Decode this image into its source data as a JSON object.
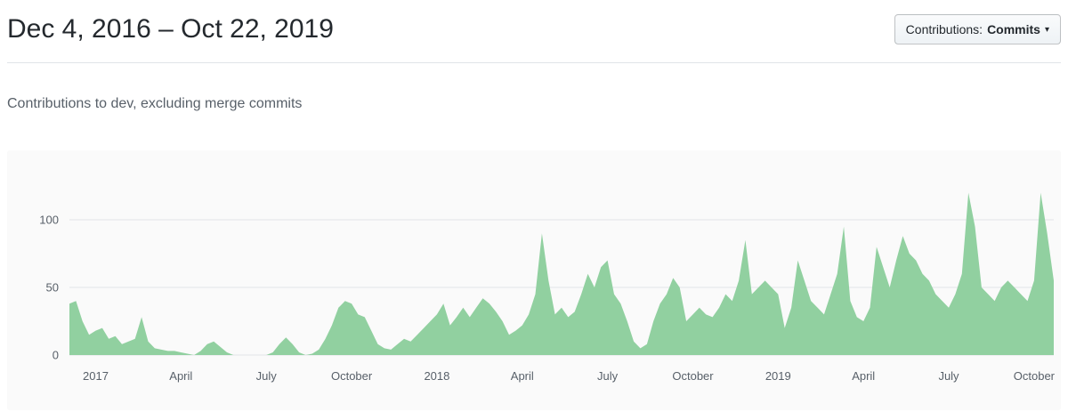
{
  "header": {
    "title": "Dec 4, 2016 – Oct 22, 2019",
    "contributions_button": {
      "label_prefix": "Contributions:",
      "selected": "Commits",
      "caret_icon": "▾"
    }
  },
  "subtitle": "Contributions to dev, excluding merge commits",
  "chart_data": {
    "type": "area",
    "title": "Contributions to dev, excluding merge commits",
    "series_name": "Commits",
    "x_start_label": "Dec 4, 2016",
    "x_end_label": "Oct 22, 2019",
    "x_tick_labels": [
      "2017",
      "April",
      "July",
      "October",
      "2018",
      "April",
      "July",
      "October",
      "2019",
      "April",
      "July",
      "October"
    ],
    "x_tick_weeks": [
      4,
      17,
      30,
      43,
      56,
      69,
      82,
      95,
      108,
      121,
      134,
      147
    ],
    "y_ticks": [
      0,
      50,
      100
    ],
    "ylim": [
      0,
      130
    ],
    "grid": true,
    "legend": false,
    "values": [
      38,
      40,
      25,
      15,
      18,
      20,
      12,
      14,
      8,
      10,
      12,
      28,
      10,
      5,
      4,
      3,
      3,
      2,
      1,
      0,
      3,
      8,
      10,
      6,
      2,
      0,
      0,
      0,
      0,
      0,
      0,
      2,
      8,
      13,
      8,
      2,
      0,
      1,
      4,
      12,
      22,
      35,
      40,
      38,
      30,
      28,
      18,
      8,
      5,
      4,
      8,
      12,
      10,
      15,
      20,
      25,
      30,
      38,
      22,
      28,
      35,
      28,
      35,
      42,
      38,
      32,
      25,
      15,
      18,
      22,
      30,
      45,
      90,
      55,
      30,
      35,
      28,
      32,
      45,
      60,
      50,
      65,
      70,
      45,
      38,
      25,
      10,
      5,
      8,
      25,
      38,
      45,
      57,
      50,
      25,
      30,
      35,
      30,
      28,
      35,
      45,
      40,
      55,
      85,
      45,
      50,
      55,
      50,
      45,
      20,
      35,
      70,
      55,
      40,
      35,
      30,
      45,
      60,
      95,
      40,
      28,
      25,
      35,
      80,
      65,
      50,
      70,
      88,
      75,
      70,
      60,
      55,
      45,
      40,
      35,
      45,
      60,
      120,
      95,
      50,
      45,
      40,
      50,
      55,
      50,
      45,
      40,
      55,
      120,
      90,
      55
    ],
    "colors": {
      "area": "#91d0a0",
      "grid": "#e1e4e8",
      "axis_text": "#586069",
      "panel_bg": "#fafafa"
    }
  }
}
